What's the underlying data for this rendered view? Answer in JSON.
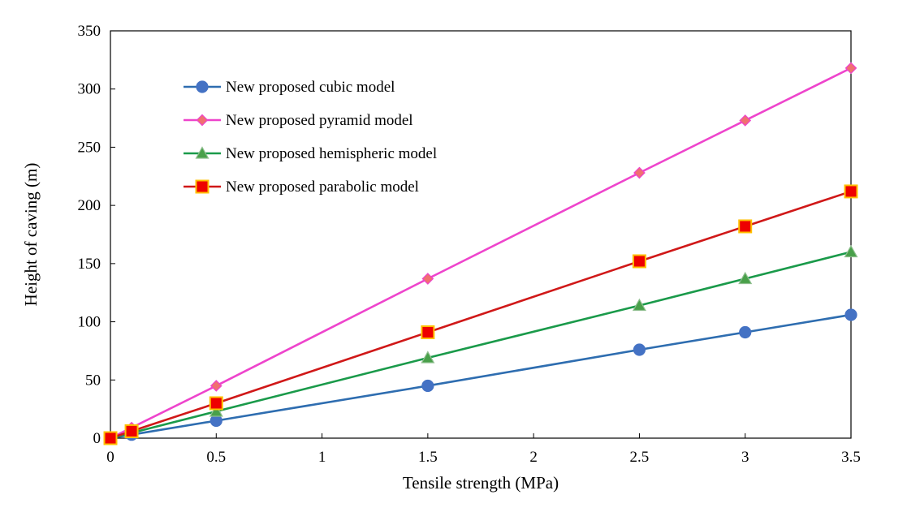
{
  "chart_data": {
    "type": "line",
    "title": "",
    "xlabel": "Tensile strength (MPa)",
    "ylabel": "Height of caving (m)",
    "xlim": [
      0,
      3.5
    ],
    "ylim": [
      0,
      350
    ],
    "x": [
      0,
      0.1,
      0.5,
      1.5,
      2.5,
      3,
      3.5
    ],
    "xticks": [
      0,
      0.5,
      1,
      1.5,
      2,
      2.5,
      3,
      3.5
    ],
    "xtick_labels": [
      "0",
      "0.5",
      "1",
      "1.5",
      "2",
      "2.5",
      "3",
      "3.5"
    ],
    "yticks": [
      0,
      50,
      100,
      150,
      200,
      250,
      300,
      350
    ],
    "ytick_labels": [
      "0",
      "50",
      "100",
      "150",
      "200",
      "250",
      "300",
      "350"
    ],
    "grid": false,
    "legend_position": "top-left",
    "series": [
      {
        "name": "New proposed cubic model",
        "marker": "circle",
        "color": "#2e6db0",
        "marker_fill": "#4472c4",
        "marker_edge": "#4472c4",
        "values": [
          0,
          3,
          15,
          45,
          76,
          91,
          106
        ]
      },
      {
        "name": "New proposed pyramid model",
        "marker": "diamond",
        "color": "#ee44cc",
        "marker_fill": "#f07070",
        "marker_edge": "#ee44cc",
        "values": [
          0,
          9,
          45,
          137,
          228,
          273,
          318
        ]
      },
      {
        "name": "New proposed hemispheric model",
        "marker": "triangle",
        "color": "#1a9a4a",
        "marker_fill": "#49a04a",
        "marker_edge": "#8fbf8f",
        "values": [
          0,
          4.5,
          23,
          69,
          114,
          137,
          160
        ]
      },
      {
        "name": "New proposed parabolic model",
        "marker": "square",
        "color": "#d01818",
        "marker_fill": "#ee0000",
        "marker_edge": "#ffc000",
        "values": [
          0,
          6,
          30,
          91,
          152,
          182,
          212
        ]
      }
    ]
  }
}
